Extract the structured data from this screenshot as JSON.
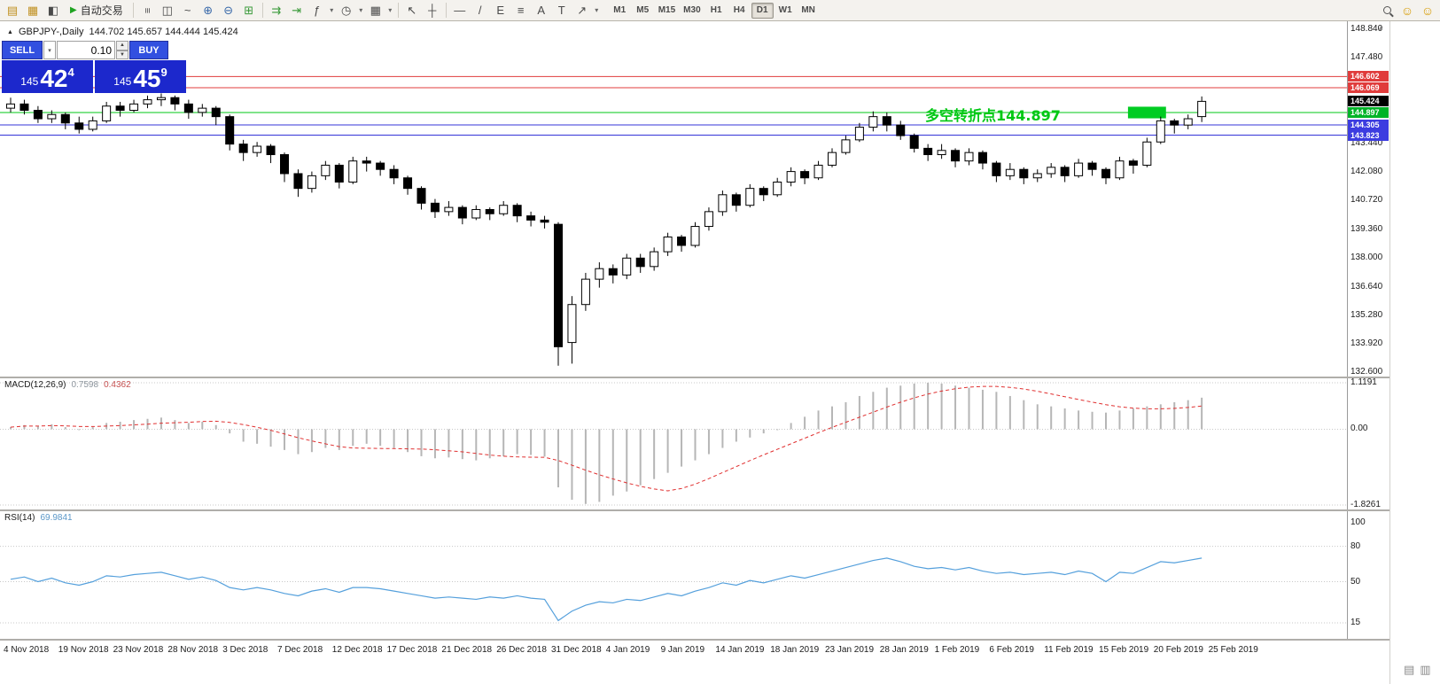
{
  "toolbar": {
    "autotrading_label": "自动交易",
    "icons": {
      "new_order": "▤",
      "new_chart": "▦",
      "profiles": "◧",
      "play": "▶",
      "bar_chart": "≡",
      "candlestick": "◫",
      "line_chart": "~",
      "zoom_in": "⊕",
      "zoom_out": "⊖",
      "tile_windows": "⊞",
      "auto_scroll": "⇉",
      "chart_shift": "⇥",
      "indicators": "ƒ",
      "periods": "◷",
      "templates": "▦",
      "cursor": "↖",
      "crosshair": "┼",
      "hline": "—",
      "trendline": "/",
      "channel": "E",
      "fibonacci": "≡",
      "text": "A",
      "label": "T",
      "arrows": "↗",
      "dropdown": "▾",
      "smiley": "☺"
    },
    "timeframes": [
      {
        "label": "M1",
        "active": false
      },
      {
        "label": "M5",
        "active": false
      },
      {
        "label": "M15",
        "active": false
      },
      {
        "label": "M30",
        "active": false
      },
      {
        "label": "H1",
        "active": false
      },
      {
        "label": "H4",
        "active": false
      },
      {
        "label": "D1",
        "active": true
      },
      {
        "label": "W1",
        "active": false
      },
      {
        "label": "MN",
        "active": false
      }
    ]
  },
  "chart": {
    "symbol_marker": "▲",
    "symbol_label": "GBPJPY-,Daily",
    "ohlc_label": "144.702 145.657 144.444 145.424",
    "annotation": {
      "text": "多空转折点144.897",
      "color": "#00c814"
    },
    "trade_panel": {
      "sell_label": "SELL",
      "buy_label": "BUY",
      "volume": "0.10",
      "dropdown_glyph": "▾",
      "spin_up": "▲",
      "spin_down": "▼",
      "bid_small": "145",
      "bid_big": "42",
      "bid_sup": "4",
      "ask_small": "145",
      "ask_big": "45",
      "ask_sup": "9"
    }
  },
  "price_axis": {
    "plain_labels": [
      "148.840",
      "147.480",
      "143.440",
      "142.080",
      "140.720",
      "139.360",
      "138.000",
      "136.640",
      "135.280",
      "133.920",
      "132.600"
    ],
    "tags": [
      {
        "label": "146.602",
        "color": "#e03c3c"
      },
      {
        "label": "146.069",
        "color": "#e03c3c"
      },
      {
        "label": "145.424",
        "color": "#000000"
      },
      {
        "label": "144.897",
        "color": "#00b428"
      },
      {
        "label": "144.305",
        "color": "#3c3ce0"
      },
      {
        "label": "143.823",
        "color": "#3c3ce0"
      }
    ],
    "macd_labels": [
      "1.1191",
      "0.00",
      "-1.8261"
    ],
    "rsi_labels": [
      "100",
      "80",
      "50",
      "15"
    ]
  },
  "chart_data": {
    "type": "candlestick",
    "symbol": "GBPJPY-",
    "timeframe": "Daily",
    "price_range": [
      132.6,
      148.84
    ],
    "current_price": 145.424,
    "hlines": [
      {
        "price": 146.602,
        "color": "#e03c3c"
      },
      {
        "price": 146.069,
        "color": "#e03c3c"
      },
      {
        "price": 144.897,
        "color": "#00c814"
      },
      {
        "price": 144.305,
        "color": "#3434d8"
      },
      {
        "price": 143.823,
        "color": "#3434d8"
      }
    ],
    "highlight_rect": {
      "from_index": 82,
      "to_index": 84,
      "price_top": 145.17,
      "price_bottom": 144.62,
      "color": "#00cc22"
    },
    "candles_ohlc": [
      [
        145.1,
        145.6,
        144.9,
        145.3
      ],
      [
        145.3,
        145.5,
        144.8,
        145.0
      ],
      [
        145.0,
        145.2,
        144.4,
        144.6
      ],
      [
        144.6,
        145.0,
        144.4,
        144.8
      ],
      [
        144.8,
        144.9,
        144.1,
        144.4
      ],
      [
        144.4,
        144.7,
        143.9,
        144.1
      ],
      [
        144.1,
        144.7,
        144.0,
        144.5
      ],
      [
        144.5,
        145.4,
        144.4,
        145.2
      ],
      [
        145.2,
        145.4,
        144.7,
        145.0
      ],
      [
        145.0,
        145.5,
        144.9,
        145.3
      ],
      [
        145.3,
        145.7,
        145.1,
        145.5
      ],
      [
        145.5,
        145.8,
        145.2,
        145.6
      ],
      [
        145.6,
        145.7,
        145.0,
        145.3
      ],
      [
        145.3,
        145.5,
        144.6,
        144.9
      ],
      [
        144.9,
        145.3,
        144.7,
        145.1
      ],
      [
        145.1,
        145.2,
        144.3,
        144.7
      ],
      [
        144.7,
        144.8,
        143.1,
        143.4
      ],
      [
        143.4,
        143.6,
        142.6,
        143.0
      ],
      [
        143.0,
        143.5,
        142.8,
        143.3
      ],
      [
        143.3,
        143.4,
        142.5,
        142.9
      ],
      [
        142.9,
        143.0,
        141.6,
        142.0
      ],
      [
        142.0,
        142.2,
        140.9,
        141.3
      ],
      [
        141.3,
        142.1,
        141.1,
        141.9
      ],
      [
        141.9,
        142.6,
        141.7,
        142.4
      ],
      [
        142.4,
        142.5,
        141.3,
        141.6
      ],
      [
        141.6,
        142.8,
        141.5,
        142.6
      ],
      [
        142.6,
        142.8,
        142.1,
        142.5
      ],
      [
        142.5,
        142.6,
        141.9,
        142.2
      ],
      [
        142.2,
        142.4,
        141.5,
        141.8
      ],
      [
        141.8,
        141.9,
        141.0,
        141.3
      ],
      [
        141.3,
        141.4,
        140.3,
        140.6
      ],
      [
        140.6,
        140.8,
        139.9,
        140.2
      ],
      [
        140.2,
        140.7,
        140.0,
        140.4
      ],
      [
        140.4,
        140.5,
        139.6,
        139.9
      ],
      [
        139.9,
        140.5,
        139.8,
        140.3
      ],
      [
        140.3,
        140.4,
        139.8,
        140.1
      ],
      [
        140.1,
        140.7,
        140.0,
        140.5
      ],
      [
        140.5,
        140.6,
        139.7,
        140.0
      ],
      [
        140.0,
        140.2,
        139.5,
        139.8
      ],
      [
        139.8,
        140.0,
        139.4,
        139.7
      ],
      [
        139.6,
        139.7,
        132.9,
        133.8
      ],
      [
        134.0,
        136.2,
        133.0,
        135.8
      ],
      [
        135.8,
        137.3,
        135.5,
        137.0
      ],
      [
        137.0,
        137.8,
        136.6,
        137.5
      ],
      [
        137.5,
        137.7,
        136.8,
        137.2
      ],
      [
        137.2,
        138.2,
        137.0,
        138.0
      ],
      [
        138.0,
        138.2,
        137.3,
        137.6
      ],
      [
        137.6,
        138.5,
        137.4,
        138.3
      ],
      [
        138.3,
        139.2,
        138.1,
        139.0
      ],
      [
        139.0,
        139.1,
        138.3,
        138.6
      ],
      [
        138.6,
        139.7,
        138.5,
        139.5
      ],
      [
        139.5,
        140.4,
        139.3,
        140.2
      ],
      [
        140.2,
        141.2,
        140.0,
        141.0
      ],
      [
        141.0,
        141.1,
        140.2,
        140.5
      ],
      [
        140.5,
        141.5,
        140.4,
        141.3
      ],
      [
        141.3,
        141.4,
        140.7,
        141.0
      ],
      [
        141.0,
        141.8,
        140.9,
        141.6
      ],
      [
        141.6,
        142.3,
        141.4,
        142.1
      ],
      [
        142.1,
        142.2,
        141.5,
        141.8
      ],
      [
        141.8,
        142.6,
        141.7,
        142.4
      ],
      [
        142.4,
        143.2,
        142.3,
        143.0
      ],
      [
        143.0,
        143.8,
        142.9,
        143.6
      ],
      [
        143.6,
        144.4,
        143.5,
        144.2
      ],
      [
        144.2,
        144.95,
        144.0,
        144.7
      ],
      [
        144.7,
        144.9,
        144.0,
        144.3
      ],
      [
        144.3,
        144.5,
        143.6,
        143.8
      ],
      [
        143.8,
        143.9,
        143.0,
        143.2
      ],
      [
        143.2,
        143.4,
        142.6,
        142.9
      ],
      [
        142.9,
        143.4,
        142.7,
        143.1
      ],
      [
        143.1,
        143.2,
        142.3,
        142.6
      ],
      [
        142.6,
        143.2,
        142.4,
        143.0
      ],
      [
        143.0,
        143.1,
        142.2,
        142.5
      ],
      [
        142.5,
        142.6,
        141.6,
        141.9
      ],
      [
        141.9,
        142.5,
        141.7,
        142.2
      ],
      [
        142.2,
        142.3,
        141.5,
        141.8
      ],
      [
        141.8,
        142.2,
        141.6,
        142.0
      ],
      [
        142.0,
        142.5,
        141.8,
        142.3
      ],
      [
        142.3,
        142.4,
        141.6,
        141.9
      ],
      [
        141.9,
        142.7,
        141.8,
        142.5
      ],
      [
        142.5,
        142.6,
        141.9,
        142.2
      ],
      [
        142.2,
        142.3,
        141.5,
        141.8
      ],
      [
        141.8,
        142.8,
        141.7,
        142.6
      ],
      [
        142.6,
        142.7,
        142.0,
        142.4
      ],
      [
        142.4,
        143.7,
        142.3,
        143.5
      ],
      [
        143.5,
        144.7,
        143.4,
        144.5
      ],
      [
        144.5,
        144.6,
        143.9,
        144.3
      ],
      [
        144.3,
        144.8,
        144.1,
        144.6
      ],
      [
        144.702,
        145.657,
        144.444,
        145.424
      ]
    ],
    "macd": {
      "label": "MACD(12,26,9)",
      "value_main": "0.7598",
      "value_signal": "0.4362",
      "range": [
        -1.8261,
        1.1191
      ],
      "hist_color": "#b6b6b6",
      "signal_color": "#e03030",
      "hist": [
        0.05,
        0.1,
        0.08,
        0.12,
        0.05,
        0.0,
        0.05,
        0.15,
        0.18,
        0.22,
        0.25,
        0.28,
        0.22,
        0.15,
        0.18,
        0.1,
        -0.1,
        -0.3,
        -0.35,
        -0.42,
        -0.5,
        -0.6,
        -0.55,
        -0.45,
        -0.5,
        -0.4,
        -0.35,
        -0.4,
        -0.45,
        -0.55,
        -0.65,
        -0.7,
        -0.68,
        -0.72,
        -0.75,
        -0.7,
        -0.65,
        -0.6,
        -0.62,
        -0.66,
        -1.4,
        -1.7,
        -1.8,
        -1.75,
        -1.6,
        -1.5,
        -1.35,
        -1.2,
        -1.05,
        -0.9,
        -0.75,
        -0.6,
        -0.45,
        -0.3,
        -0.2,
        -0.1,
        0.0,
        0.15,
        0.3,
        0.45,
        0.55,
        0.65,
        0.8,
        0.9,
        1.0,
        1.05,
        1.1,
        1.12,
        1.1,
        1.05,
        1.0,
        0.95,
        0.9,
        0.8,
        0.7,
        0.6,
        0.55,
        0.5,
        0.45,
        0.42,
        0.4,
        0.45,
        0.5,
        0.55,
        0.6,
        0.65,
        0.7,
        0.76
      ]
    },
    "rsi": {
      "label": "RSI(14)",
      "value": "69.9841",
      "color": "#55a0dc",
      "levels": [
        80,
        50,
        15
      ],
      "values": [
        52,
        54,
        50,
        53,
        49,
        47,
        50,
        55,
        54,
        56,
        57,
        58,
        55,
        52,
        54,
        51,
        45,
        43,
        45,
        43,
        40,
        38,
        42,
        44,
        41,
        45,
        45,
        44,
        42,
        40,
        38,
        36,
        37,
        36,
        35,
        37,
        36,
        38,
        36,
        35,
        17,
        25,
        30,
        33,
        32,
        35,
        34,
        37,
        40,
        38,
        42,
        45,
        49,
        47,
        51,
        49,
        52,
        55,
        53,
        56,
        59,
        62,
        65,
        68,
        70,
        67,
        63,
        61,
        62,
        60,
        62,
        59,
        57,
        58,
        56,
        57,
        58,
        56,
        59,
        57,
        50,
        58,
        57,
        62,
        67,
        66,
        68,
        70
      ]
    },
    "x_axis_dates": [
      "4 Nov 2018",
      "19 Nov 2018",
      "23 Nov 2018",
      "28 Nov 2018",
      "3 Dec 2018",
      "7 Dec 2018",
      "12 Dec 2018",
      "17 Dec 2018",
      "21 Dec 2018",
      "26 Dec 2018",
      "31 Dec 2018",
      "4 Jan 2019",
      "9 Jan 2019",
      "14 Jan 2019",
      "18 Jan 2019",
      "23 Jan 2019",
      "28 Jan 2019",
      "1 Feb 2019",
      "6 Feb 2019",
      "11 Feb 2019",
      "15 Feb 2019",
      "20 Feb 2019",
      "25 Feb 2019"
    ]
  },
  "misc": {
    "scroll_arrow": "▲",
    "bottom_icon_1": "▤",
    "bottom_icon_2": "▥"
  }
}
